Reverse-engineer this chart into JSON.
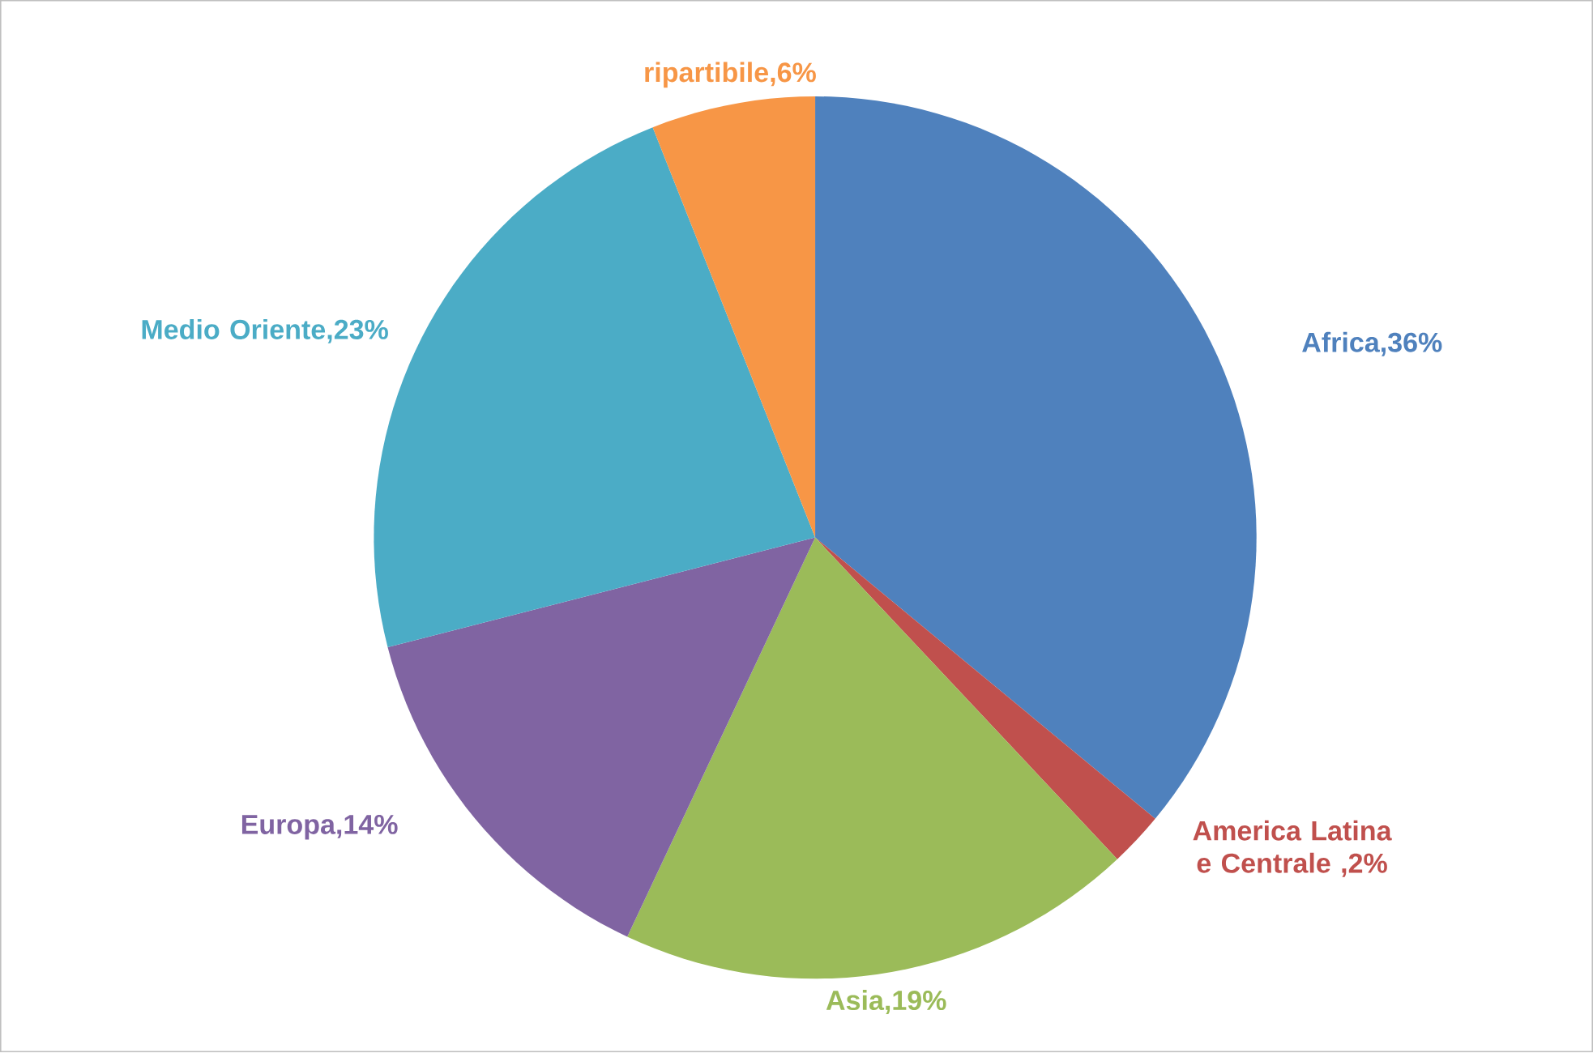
{
  "chart_data": {
    "type": "pie",
    "categories": [
      "Africa,36%",
      "America Latina e Centrale ,2%",
      "Asia,19%",
      "Europa,14%",
      "Medio Oriente,23%",
      "ripartibile,6%"
    ],
    "values": [
      36,
      2,
      19,
      14,
      23,
      6
    ],
    "colors": [
      "#4f81bd",
      "#c0504d",
      "#9bbb59",
      "#8064a2",
      "#4bacc6",
      "#f79646"
    ]
  }
}
